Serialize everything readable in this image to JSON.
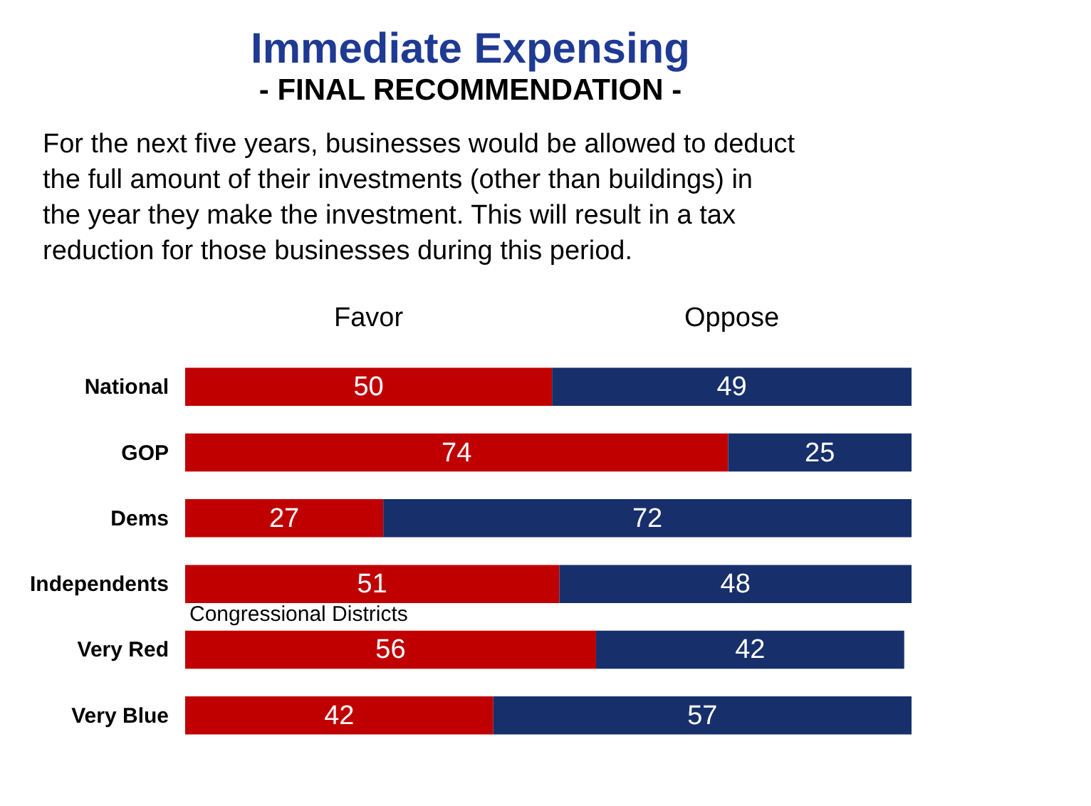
{
  "chart_data": {
    "type": "bar",
    "orientation": "horizontal",
    "stacked": true,
    "title": "Immediate Expensing",
    "subtitle": "- FINAL RECOMMENDATION -",
    "categories": [
      "National",
      "GOP",
      "Dems",
      "Independents",
      "Very Red",
      "Very Blue"
    ],
    "series": [
      {
        "name": "Favor",
        "color": "#c00000",
        "values": [
          50,
          74,
          27,
          51,
          56,
          42
        ]
      },
      {
        "name": "Oppose",
        "color": "#17306b",
        "values": [
          49,
          25,
          72,
          48,
          42,
          57
        ]
      }
    ],
    "data_labels": true,
    "legend": "top",
    "grid": false,
    "annotations": [
      "For the next five years, businesses would be allowed to deduct the full amount of their investments (other than buildings) in the year they make the investment. This will result in a tax reduction for those businesses during this period.",
      "Congressional Districts"
    ]
  }
}
